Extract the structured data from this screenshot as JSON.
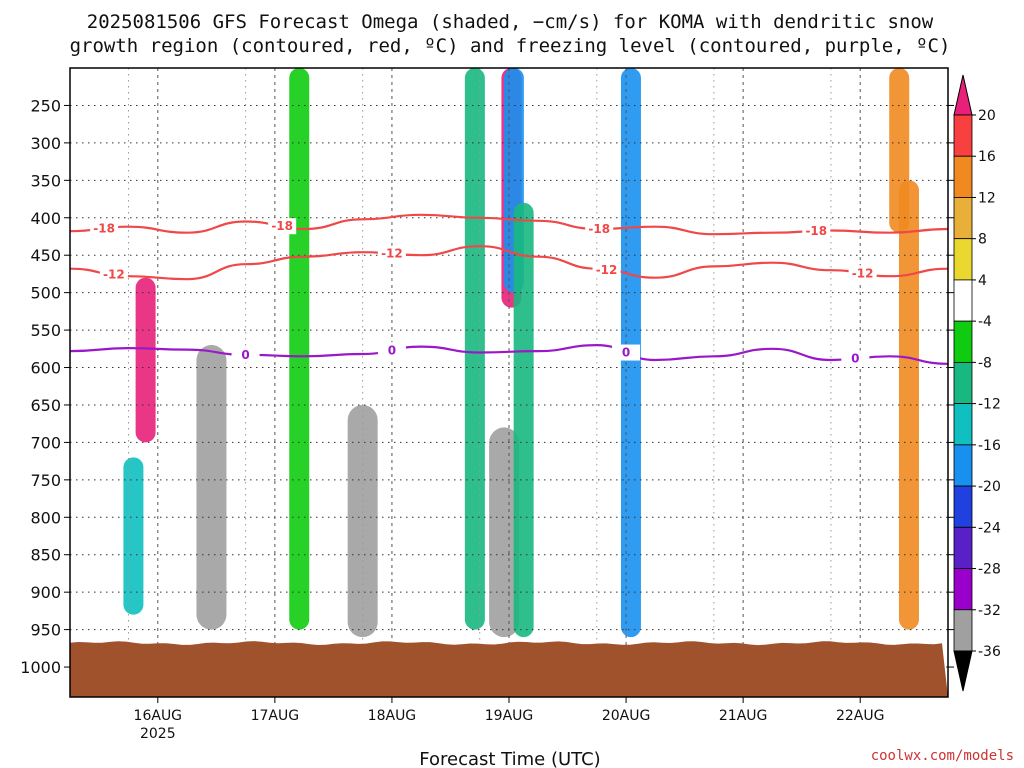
{
  "title_lines": [
    "2025081506 GFS Forecast Omega (shaded, −cm/s) for KOMA with dendritic snow",
    "growth region (contoured, red, ºC) and freezing level (contoured, purple, ºC)"
  ],
  "xlabel": "Forecast Time (UTC)",
  "credit": "coolwx.com/models",
  "chart_data": {
    "type": "heatmap",
    "x_axis": {
      "range": [
        "2025-08-15T06:00",
        "2025-08-22T18:00"
      ],
      "ticks": [
        {
          "value": "2025-08-16T00:00",
          "label": "16AUG",
          "sublabel": "2025"
        },
        {
          "value": "2025-08-17T00:00",
          "label": "17AUG"
        },
        {
          "value": "2025-08-18T00:00",
          "label": "18AUG"
        },
        {
          "value": "2025-08-19T00:00",
          "label": "19AUG"
        },
        {
          "value": "2025-08-20T00:00",
          "label": "20AUG"
        },
        {
          "value": "2025-08-21T00:00",
          "label": "21AUG"
        },
        {
          "value": "2025-08-22T00:00",
          "label": "22AUG"
        }
      ]
    },
    "y_axis": {
      "range": [
        1040,
        200
      ],
      "ticks": [
        250,
        300,
        350,
        400,
        450,
        500,
        550,
        600,
        650,
        700,
        750,
        800,
        850,
        900,
        950,
        1000
      ],
      "grid": true
    },
    "surface_pressure": 968,
    "surface_color": "#a0522d",
    "colorbar": {
      "levels": [
        -36,
        -32,
        -28,
        -24,
        -20,
        -16,
        -12,
        -8,
        -4,
        4,
        8,
        12,
        16,
        20
      ],
      "labels": [
        "20",
        "16",
        "12",
        "8",
        "4",
        "-4",
        "-8",
        "-12",
        "-16",
        "-20",
        "-24",
        "-28",
        "-32",
        "-36"
      ],
      "colors": [
        "#000000",
        "#a0a0a0",
        "#9900cc",
        "#5a20c8",
        "#2040e0",
        "#1890f0",
        "#10c0c0",
        "#18b880",
        "#10cc10",
        "#ffffff",
        "#ead830",
        "#e8b038",
        "#f08a20",
        "#f84040",
        "#e8207a"
      ]
    },
    "omega_features": [
      {
        "time": "2025-08-15T21:30",
        "p_top": 480,
        "p_bot": 700,
        "value": 20
      },
      {
        "time": "2025-08-15T19:00",
        "p_top": 720,
        "p_bot": 930,
        "value": -16
      },
      {
        "time": "2025-08-16T11:00",
        "p_top": 570,
        "p_bot": 950,
        "value": -34
      },
      {
        "time": "2025-08-17T18:00",
        "p_top": 650,
        "p_bot": 960,
        "value": -36
      },
      {
        "time": "2025-08-17T05:00",
        "p_top": 200,
        "p_bot": 950,
        "value": -8
      },
      {
        "time": "2025-08-18T17:00",
        "p_top": 200,
        "p_bot": 950,
        "value": -12
      },
      {
        "time": "2025-08-18T23:00",
        "p_top": 680,
        "p_bot": 960,
        "value": -36
      },
      {
        "time": "2025-08-19T00:30",
        "p_top": 200,
        "p_bot": 520,
        "value": 20
      },
      {
        "time": "2025-08-19T01:00",
        "p_top": 200,
        "p_bot": 500,
        "value": -20
      },
      {
        "time": "2025-08-19T03:00",
        "p_top": 380,
        "p_bot": 960,
        "value": -12
      },
      {
        "time": "2025-08-20T01:00",
        "p_top": 200,
        "p_bot": 960,
        "value": -20
      },
      {
        "time": "2025-08-22T08:00",
        "p_top": 200,
        "p_bot": 420,
        "value": 12
      },
      {
        "time": "2025-08-22T10:00",
        "p_top": 350,
        "p_bot": 950,
        "value": 12
      }
    ],
    "contours": [
      {
        "name": "dendritic-minus18",
        "color": "#f04848",
        "label": "-18",
        "label_times": [
          "2025-08-15T13:00",
          "2025-08-17T01:30",
          "2025-08-19T18:30",
          "2025-08-21T15:00"
        ],
        "time": [
          "2025-08-15T06:00",
          "2025-08-15T18:00",
          "2025-08-16T06:00",
          "2025-08-16T18:00",
          "2025-08-17T06:00",
          "2025-08-17T18:00",
          "2025-08-18T06:00",
          "2025-08-18T18:00",
          "2025-08-19T06:00",
          "2025-08-19T18:00",
          "2025-08-20T06:00",
          "2025-08-20T18:00",
          "2025-08-21T06:00",
          "2025-08-21T18:00",
          "2025-08-22T06:00",
          "2025-08-22T18:00"
        ],
        "pressure": [
          418,
          412,
          420,
          405,
          415,
          402,
          396,
          400,
          404,
          415,
          412,
          422,
          420,
          417,
          420,
          415
        ]
      },
      {
        "name": "dendritic-minus12",
        "color": "#f04848",
        "label": "-12",
        "label_times": [
          "2025-08-15T15:00",
          "2025-08-18T00:00",
          "2025-08-19T20:00",
          "2025-08-22T00:30"
        ],
        "time": [
          "2025-08-15T06:00",
          "2025-08-15T18:00",
          "2025-08-16T06:00",
          "2025-08-16T18:00",
          "2025-08-17T06:00",
          "2025-08-17T18:00",
          "2025-08-18T06:00",
          "2025-08-18T18:00",
          "2025-08-19T06:00",
          "2025-08-19T18:00",
          "2025-08-20T06:00",
          "2025-08-20T18:00",
          "2025-08-21T06:00",
          "2025-08-21T18:00",
          "2025-08-22T06:00",
          "2025-08-22T18:00"
        ],
        "pressure": [
          468,
          478,
          482,
          462,
          452,
          446,
          450,
          438,
          452,
          468,
          480,
          465,
          460,
          470,
          478,
          468
        ]
      },
      {
        "name": "freezing-level-0",
        "color": "#9a18c8",
        "label": "0",
        "label_times": [
          "2025-08-16T18:00",
          "2025-08-18T00:00",
          "2025-08-20T00:00",
          "2025-08-21T23:00"
        ],
        "time": [
          "2025-08-15T06:00",
          "2025-08-15T18:00",
          "2025-08-16T06:00",
          "2025-08-16T18:00",
          "2025-08-17T06:00",
          "2025-08-17T18:00",
          "2025-08-18T06:00",
          "2025-08-18T18:00",
          "2025-08-19T06:00",
          "2025-08-19T18:00",
          "2025-08-20T06:00",
          "2025-08-20T18:00",
          "2025-08-21T06:00",
          "2025-08-21T18:00",
          "2025-08-22T06:00",
          "2025-08-22T18:00"
        ],
        "pressure": [
          578,
          574,
          576,
          583,
          585,
          582,
          572,
          580,
          578,
          570,
          590,
          585,
          575,
          590,
          585,
          595
        ]
      }
    ]
  }
}
